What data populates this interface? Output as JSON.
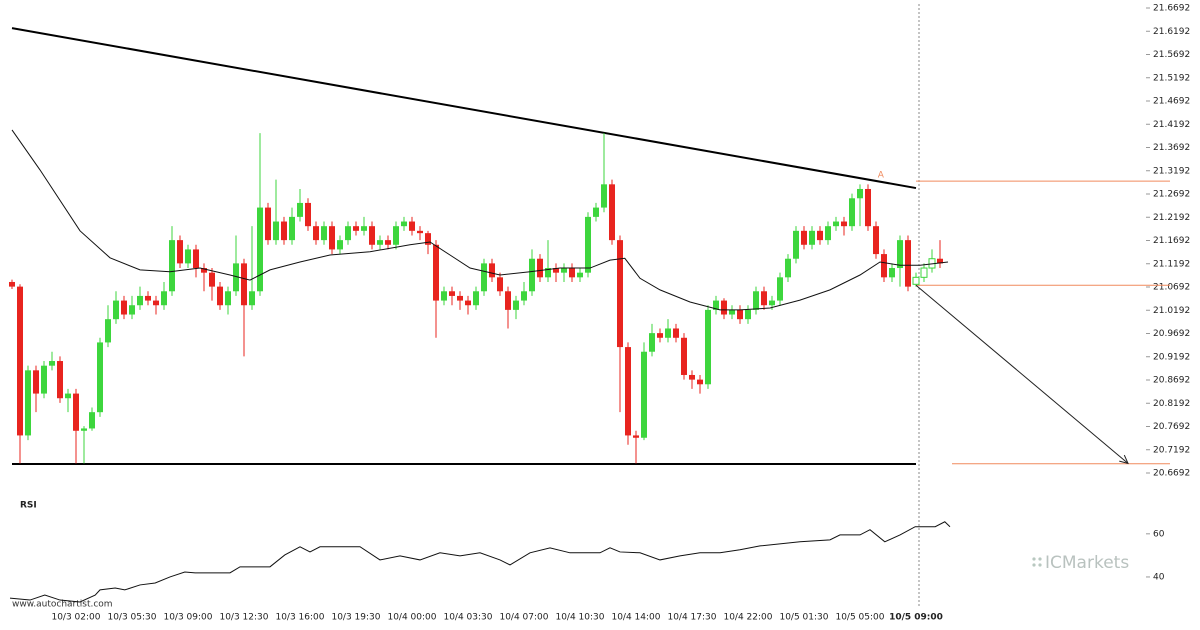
{
  "chart_data": {
    "type": "candlestick",
    "categories": [
      null,
      null,
      null,
      null,
      null,
      null,
      null,
      null,
      "10/3 02:00",
      null,
      null,
      null,
      null,
      null,
      null,
      "10/3 05:30",
      null,
      null,
      null,
      null,
      null,
      null,
      "10/3 09:00",
      null,
      null,
      null,
      null,
      null,
      null,
      "10/3 12:30",
      null,
      null,
      null,
      null,
      null,
      null,
      "10/3 16:00",
      null,
      null,
      null,
      null,
      null,
      null,
      "10/3 19:30",
      null,
      null,
      null,
      null,
      null,
      null,
      "10/4 00:00",
      null,
      null,
      null,
      null,
      null,
      null,
      "10/4 03:30",
      null,
      null,
      null,
      null,
      null,
      null,
      "10/4 07:00",
      null,
      null,
      null,
      null,
      null,
      null,
      "10/4 10:30",
      null,
      null,
      null,
      null,
      null,
      null,
      "10/4 14:00",
      null,
      null,
      null,
      null,
      null,
      null,
      "10/4 17:30",
      null,
      null,
      null,
      null,
      null,
      null,
      "10/4 22:00",
      null,
      null,
      null,
      null,
      null,
      null,
      "10/5 01:30",
      null,
      null,
      null,
      null,
      null,
      null,
      "10/5 05:00",
      null,
      null,
      null,
      null,
      null,
      null,
      "10/5 09:00",
      null,
      null,
      null
    ],
    "open": [
      21.08,
      21.07,
      20.75,
      20.89,
      20.84,
      20.9,
      20.91,
      20.83,
      20.84,
      20.76,
      20.765,
      20.8,
      20.95,
      21.0,
      21.04,
      21.01,
      21.03,
      21.05,
      21.04,
      21.03,
      21.06,
      21.17,
      21.12,
      21.15,
      21.11,
      21.1,
      21.07,
      21.03,
      21.06,
      21.12,
      21.03,
      21.06,
      21.24,
      21.17,
      21.21,
      21.17,
      21.22,
      21.25,
      21.2,
      21.17,
      21.2,
      21.15,
      21.17,
      21.2,
      21.19,
      21.2,
      21.16,
      21.17,
      21.16,
      21.2,
      21.21,
      21.19,
      21.185,
      21.16,
      21.04,
      21.06,
      21.05,
      21.04,
      21.03,
      21.06,
      21.12,
      21.09,
      21.06,
      21.02,
      21.04,
      21.06,
      21.13,
      21.09,
      21.11,
      21.1,
      21.11,
      21.09,
      21.1,
      21.22,
      21.24,
      21.29,
      21.17,
      20.94,
      20.75,
      20.745,
      20.93,
      20.97,
      20.96,
      20.98,
      20.96,
      20.88,
      20.87,
      20.86,
      21.02,
      21.04,
      21.01,
      21.02,
      21.0,
      21.02,
      21.06,
      21.03,
      21.04,
      21.09,
      21.13,
      21.19,
      21.16,
      21.19,
      21.17,
      21.2,
      21.21,
      21.2,
      21.26,
      21.28,
      21.2,
      21.14,
      21.09,
      21.11,
      21.17,
      21.075,
      21.09,
      21.11,
      21.13
    ],
    "high": [
      21.085,
      21.075,
      20.9,
      20.9,
      20.91,
      20.93,
      20.92,
      20.85,
      20.85,
      20.77,
      20.81,
      20.96,
      21.03,
      21.06,
      21.05,
      21.05,
      21.07,
      21.06,
      21.05,
      21.08,
      21.2,
      21.18,
      21.16,
      21.16,
      21.12,
      21.11,
      21.08,
      21.07,
      21.18,
      21.13,
      21.2,
      21.4,
      21.25,
      21.3,
      21.22,
      21.24,
      21.28,
      21.26,
      21.21,
      21.21,
      21.21,
      21.18,
      21.21,
      21.21,
      21.22,
      21.21,
      21.18,
      21.18,
      21.21,
      21.22,
      21.22,
      21.2,
      21.19,
      21.17,
      21.07,
      21.07,
      21.06,
      21.05,
      21.07,
      21.13,
      21.13,
      21.1,
      21.07,
      21.05,
      21.08,
      21.15,
      21.14,
      21.17,
      21.12,
      21.12,
      21.12,
      21.11,
      21.23,
      21.25,
      21.4,
      21.3,
      21.18,
      20.95,
      20.76,
      20.95,
      20.99,
      20.98,
      21.0,
      20.99,
      20.97,
      20.89,
      20.88,
      21.03,
      21.05,
      21.045,
      21.03,
      21.03,
      21.03,
      21.07,
      21.07,
      21.05,
      21.1,
      21.14,
      21.2,
      21.2,
      21.2,
      21.2,
      21.21,
      21.22,
      21.22,
      21.27,
      21.29,
      21.29,
      21.21,
      21.15,
      21.12,
      21.18,
      21.18,
      21.1,
      21.12,
      21.15,
      21.17
    ],
    "low": [
      21.065,
      20.69,
      20.74,
      20.8,
      20.83,
      20.89,
      20.82,
      20.8,
      20.69,
      20.69,
      20.76,
      20.79,
      20.94,
      20.99,
      21.0,
      21.0,
      21.02,
      21.03,
      21.01,
      21.02,
      21.05,
      21.11,
      21.11,
      21.09,
      21.06,
      21.04,
      21.02,
      21.01,
      21.05,
      20.92,
      21.02,
      21.05,
      21.16,
      21.16,
      21.16,
      21.16,
      21.21,
      21.19,
      21.16,
      21.16,
      21.14,
      21.14,
      21.16,
      21.18,
      21.18,
      21.15,
      21.15,
      21.15,
      21.15,
      21.19,
      21.18,
      21.17,
      21.14,
      20.96,
      21.03,
      21.03,
      21.02,
      21.01,
      21.02,
      21.05,
      21.08,
      21.05,
      20.98,
      21.0,
      21.03,
      21.05,
      21.08,
      21.08,
      21.08,
      21.08,
      21.08,
      21.08,
      21.09,
      21.21,
      21.23,
      21.16,
      20.8,
      20.73,
      20.69,
      20.74,
      20.92,
      20.95,
      20.95,
      20.95,
      20.87,
      20.85,
      20.84,
      20.85,
      21.01,
      21.0,
      21.0,
      20.99,
      20.99,
      21.01,
      21.02,
      21.02,
      21.03,
      21.08,
      21.12,
      21.15,
      21.15,
      21.16,
      21.16,
      21.19,
      21.18,
      21.19,
      21.2,
      21.19,
      21.13,
      21.08,
      21.08,
      21.07,
      21.06,
      21.07,
      21.08,
      21.1,
      21.11
    ],
    "close": [
      21.07,
      20.75,
      20.89,
      20.84,
      20.9,
      20.91,
      20.83,
      20.84,
      20.76,
      20.765,
      20.8,
      20.95,
      21.0,
      21.04,
      21.01,
      21.03,
      21.05,
      21.04,
      21.03,
      21.06,
      21.17,
      21.12,
      21.15,
      21.11,
      21.1,
      21.07,
      21.03,
      21.06,
      21.12,
      21.03,
      21.06,
      21.24,
      21.17,
      21.21,
      21.17,
      21.22,
      21.25,
      21.2,
      21.17,
      21.2,
      21.15,
      21.17,
      21.2,
      21.19,
      21.2,
      21.16,
      21.17,
      21.16,
      21.2,
      21.21,
      21.19,
      21.185,
      21.16,
      21.04,
      21.06,
      21.05,
      21.04,
      21.03,
      21.06,
      21.12,
      21.09,
      21.06,
      21.02,
      21.04,
      21.06,
      21.13,
      21.09,
      21.11,
      21.1,
      21.11,
      21.09,
      21.1,
      21.22,
      21.24,
      21.29,
      21.17,
      20.94,
      20.75,
      20.745,
      20.93,
      20.97,
      20.96,
      20.98,
      20.96,
      20.88,
      20.87,
      20.86,
      21.02,
      21.04,
      21.01,
      21.02,
      21.0,
      21.02,
      21.06,
      21.03,
      21.04,
      21.09,
      21.13,
      21.19,
      21.16,
      21.19,
      21.17,
      21.2,
      21.21,
      21.2,
      21.26,
      21.28,
      21.2,
      21.14,
      21.09,
      21.11,
      21.17,
      21.07,
      21.09,
      21.11,
      21.13,
      21.12
    ],
    "up_color": "#3dd63d",
    "down_color": "#e8241f",
    "xlim": [
      -1.5,
      144.75
    ],
    "ylim": [
      20.6692,
      21.6692
    ],
    "yticks": [
      21.6692,
      21.6192,
      21.5692,
      21.5192,
      21.4692,
      21.4192,
      21.3692,
      21.3192,
      21.2692,
      21.2192,
      21.1692,
      21.1192,
      21.0692,
      21.0192,
      20.9692,
      20.9192,
      20.8692,
      20.8192,
      20.7692,
      20.7192,
      20.6692
    ],
    "ma": {
      "color": "#111111",
      "x": [
        0,
        3.5,
        8.5,
        12.25,
        16,
        19.75,
        23.5,
        27.25,
        29.75,
        32.25,
        36,
        39.75,
        44.75,
        49.75,
        52.25,
        54.75,
        57.25,
        61,
        64.75,
        68.5,
        72.25,
        74.75,
        76.6,
        78.5,
        81,
        84.75,
        88.5,
        91,
        94.75,
        98.5,
        102.25,
        106,
        108.5,
        111,
        113.5,
        117
      ],
      "y": [
        21.407,
        21.321,
        21.19,
        21.132,
        21.106,
        21.102,
        21.11,
        21.095,
        21.084,
        21.106,
        21.123,
        21.138,
        21.145,
        21.16,
        21.166,
        21.138,
        21.11,
        21.095,
        21.102,
        21.11,
        21.11,
        21.127,
        21.131,
        21.088,
        21.063,
        21.037,
        21.02,
        21.02,
        21.024,
        21.041,
        21.063,
        21.095,
        21.123,
        21.116,
        21.116,
        21.123
      ]
    },
    "trendlines": [
      {
        "color": "#000000",
        "x": [
          0,
          113
        ],
        "y": [
          21.626,
          21.282
        ]
      },
      {
        "color": "#000000",
        "x": [
          0,
          113
        ],
        "y": [
          20.6886,
          20.6886
        ]
      }
    ],
    "level_color": "#f08a5d",
    "levels": [
      {
        "value": 21.297,
        "x_from": 113
      },
      {
        "value": 21.073,
        "x_from": 113
      },
      {
        "value": 20.689,
        "x_from": 117.5
      }
    ],
    "arrow": {
      "color": "#222222",
      "x": [
        113,
        139.5
      ],
      "y": [
        21.073,
        20.69
      ]
    },
    "annotations": [
      {
        "text": "A",
        "x": 108.6,
        "y": 21.31
      }
    ],
    "rsi": {
      "label": "RSI",
      "color": "#111111",
      "ylim": [
        27,
        78
      ],
      "yticks": [
        60,
        40
      ],
      "x": [
        -0.25,
        2.25,
        4.1,
        6,
        8.5,
        10.4,
        11,
        12.9,
        14.1,
        16,
        17.9,
        19.75,
        21.6,
        22.9,
        24.75,
        27.25,
        28.5,
        32.25,
        34.1,
        36,
        37.25,
        38.5,
        41,
        43.5,
        46,
        48.5,
        51,
        53.5,
        56,
        58.5,
        61,
        62.25,
        64.75,
        67.25,
        69.75,
        73.5,
        74.75,
        76,
        78.5,
        81,
        83.5,
        86,
        88.5,
        91,
        93.5,
        98.5,
        102.25,
        103.5,
        106,
        107.25,
        109.1,
        111,
        112.9,
        115.4,
        116.6,
        117.25
      ],
      "values": [
        30.2,
        29.3,
        31.6,
        29.3,
        28.4,
        31.6,
        34,
        34.9,
        34,
        36.3,
        37.2,
        40,
        42.3,
        41.9,
        41.9,
        41.9,
        44.7,
        44.7,
        50.2,
        54,
        51.6,
        54,
        54,
        54,
        47.9,
        49.8,
        47.9,
        51.2,
        49.8,
        51.2,
        47.9,
        45.6,
        51.2,
        53.5,
        51.2,
        51.2,
        53.5,
        51.6,
        51.2,
        47.9,
        49.8,
        51.2,
        51.2,
        52.6,
        54.4,
        56.3,
        57.2,
        59.5,
        59.5,
        61.9,
        56.3,
        59.5,
        63.3,
        63.3,
        65.6,
        63.3
      ]
    },
    "watermark": "www.autochartist.com",
    "brand": "ICMarkets"
  }
}
